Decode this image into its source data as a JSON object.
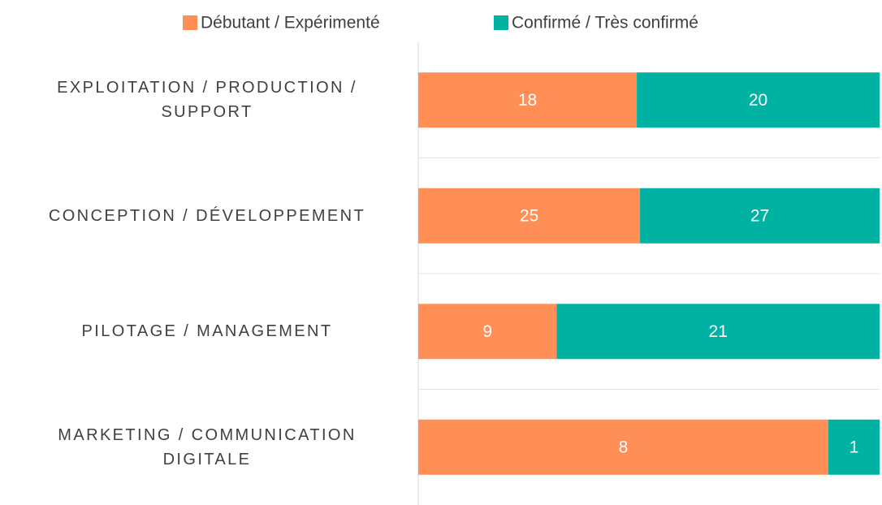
{
  "chart_data": {
    "type": "stacked_bar_100",
    "categories": [
      "EXPLOITATION / PRODUCTION / SUPPORT",
      "CONCEPTION / DÉVELOPPEMENT",
      "PILOTAGE / MANAGEMENT",
      "MARKETING / COMMUNICATION DIGITALE"
    ],
    "series": [
      {
        "name": "Débutant / Expérimenté",
        "color": "#ff8f57",
        "values": [
          18,
          25,
          9,
          8
        ]
      },
      {
        "name": "Confirmé / Très confirmé",
        "color": "#00b2a1",
        "values": [
          20,
          27,
          21,
          1
        ]
      }
    ],
    "legend": "top",
    "grid": true
  }
}
